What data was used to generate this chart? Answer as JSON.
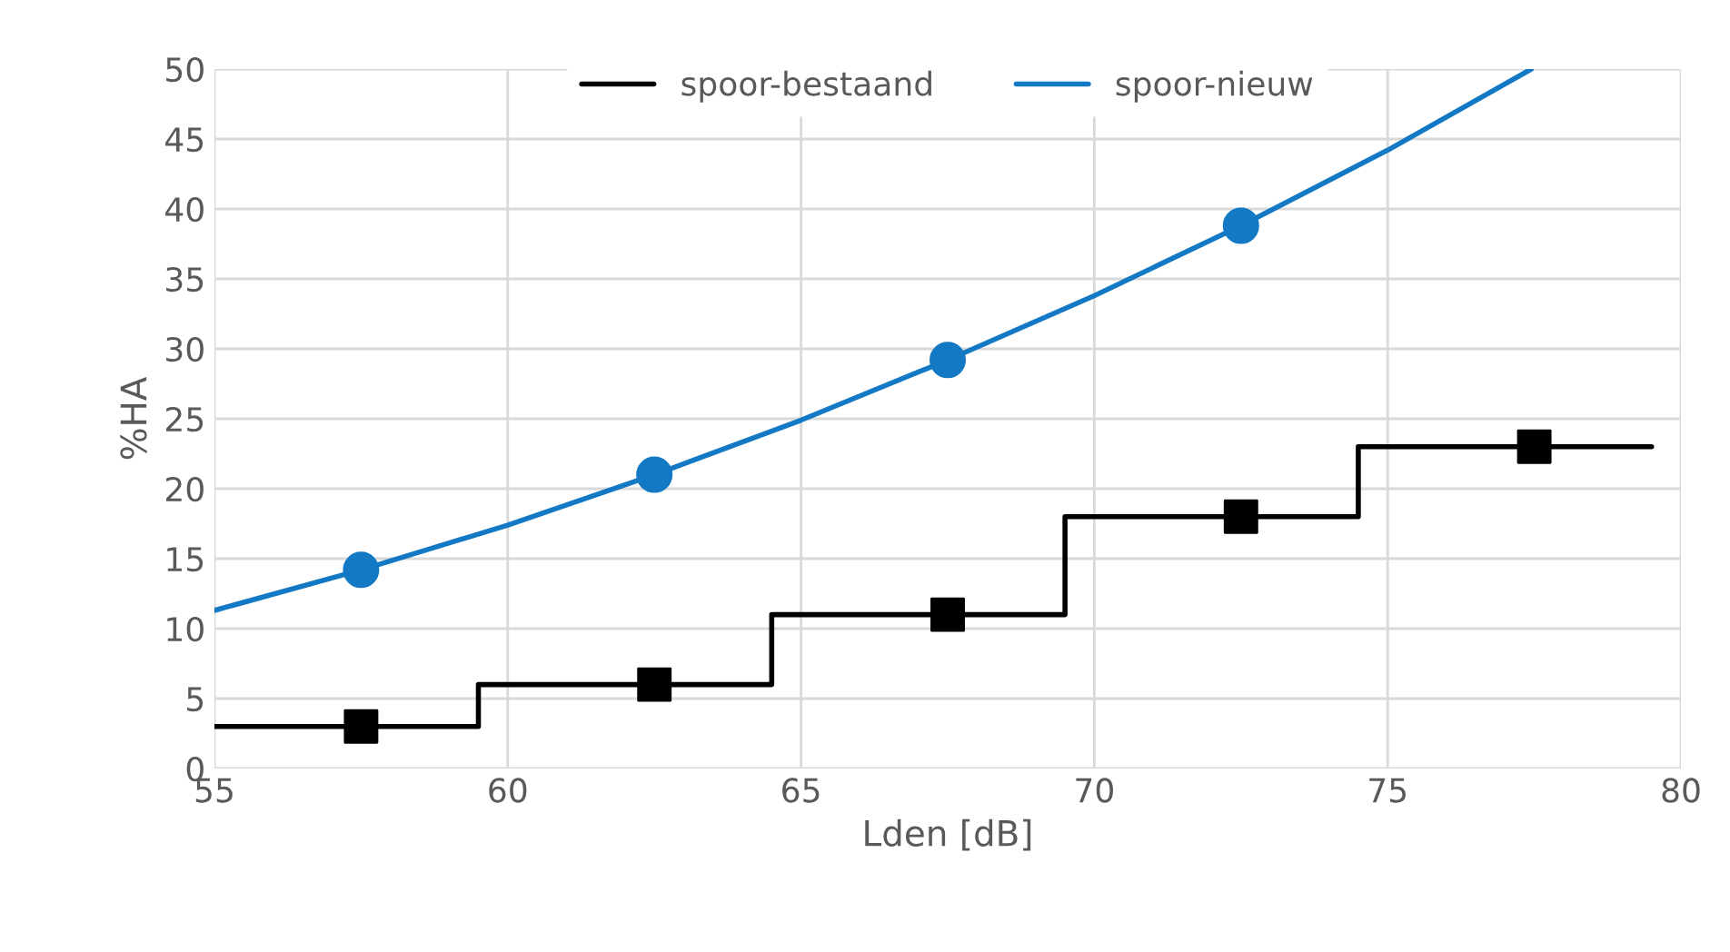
{
  "chart_data": {
    "type": "line",
    "xlabel": "Lden [dB]",
    "ylabel": "%HA",
    "xlim": [
      55,
      80
    ],
    "xticks": [
      55,
      60,
      65,
      70,
      75,
      80
    ],
    "ylim": [
      0,
      50
    ],
    "yticks": [
      0,
      5,
      10,
      15,
      20,
      25,
      30,
      35,
      40,
      45,
      50
    ],
    "grid": true,
    "legend": "top",
    "series": [
      {
        "name": "spoor-bestaand",
        "type": "step",
        "color": "#000000",
        "x": [
          55,
          59.5,
          64.5,
          69.5,
          74.5,
          79.5
        ],
        "values": [
          3,
          6,
          11,
          18,
          23,
          23
        ]
      },
      {
        "type": "scatter",
        "marker": "square",
        "color": "#000000",
        "x": [
          57.5,
          62.5,
          67.5,
          72.5,
          77.5
        ],
        "values": [
          3,
          6,
          11,
          18,
          23
        ]
      },
      {
        "name": "spoor-nieuw",
        "color": "#1479c4",
        "x": [
          55,
          57.5,
          60,
          62.5,
          65,
          67.5,
          70,
          72.5,
          75,
          77.45
        ],
        "values": [
          11.3,
          14.2,
          17.4,
          21,
          24.9,
          29.2,
          33.8,
          38.8,
          44.2,
          50
        ]
      },
      {
        "type": "scatter",
        "marker": "circle",
        "color": "#1479c4",
        "x": [
          57.5,
          62.5,
          67.5,
          72.5
        ],
        "values": [
          14.2,
          21,
          29.2,
          38.8
        ]
      }
    ]
  }
}
